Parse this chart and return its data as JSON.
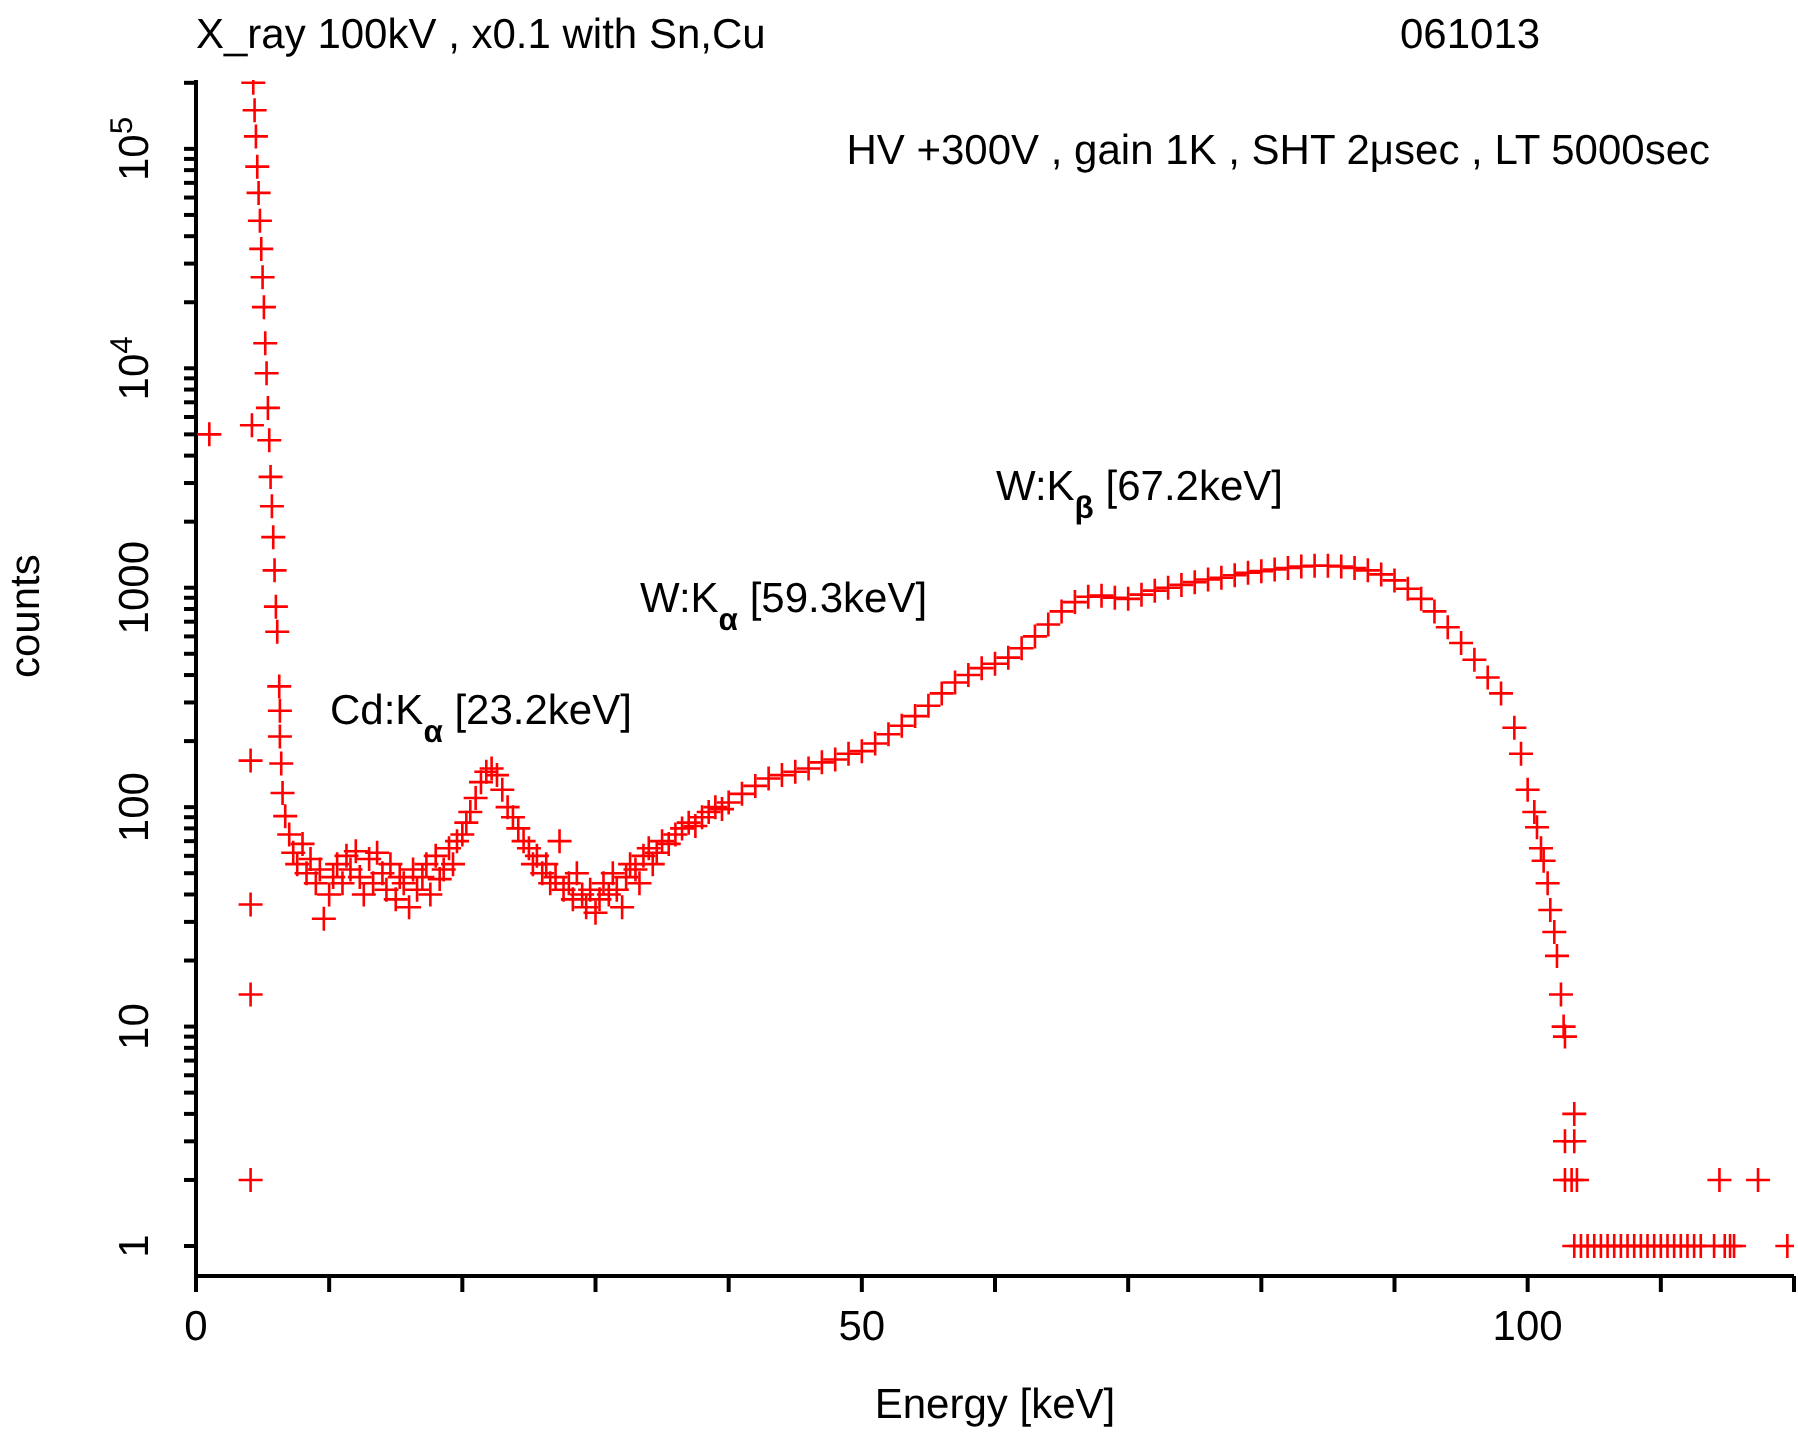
{
  "chart_data": {
    "type": "scatter",
    "title": "X_ray 100kV , x0.1 with Sn,Cu",
    "subtitle": "061013",
    "xlabel": "Energy [keV]",
    "ylabel": "counts",
    "annotations": [
      "HV +300V , gain 1K , SHT 2μsec , LT 5000sec",
      "Cd:K$_{α}$ [23.2keV]",
      "W:K$_{α}$ [59.3keV]",
      "W:K$_{β}$ [67.2keV]"
    ],
    "log": "y",
    "marker": "cross",
    "xlim": [
      0,
      120
    ],
    "ylim": [
      0.73,
      206000
    ],
    "xticks": [
      0,
      {
        "value": 10,
        "label": null
      },
      {
        "value": 20,
        "label": null
      },
      {
        "value": 30,
        "label": null
      },
      {
        "value": 40,
        "label": null
      },
      50,
      {
        "value": 60,
        "label": null
      },
      {
        "value": 70,
        "label": null
      },
      {
        "value": 80,
        "label": null
      },
      {
        "value": 90,
        "label": null
      },
      100,
      {
        "value": 110,
        "label": null
      },
      {
        "value": 120,
        "label": null
      }
    ],
    "yticks": [
      1,
      {
        "value": 2,
        "label": null
      },
      {
        "value": 3,
        "label": null
      },
      {
        "value": 4,
        "label": null
      },
      {
        "value": 5,
        "label": null
      },
      {
        "value": 6,
        "label": null
      },
      {
        "value": 7,
        "label": null
      },
      {
        "value": 8,
        "label": null
      },
      {
        "value": 9,
        "label": null
      },
      10,
      {
        "value": 20,
        "label": null
      },
      {
        "value": 30,
        "label": null
      },
      {
        "value": 40,
        "label": null
      },
      {
        "value": 50,
        "label": null
      },
      {
        "value": 60,
        "label": null
      },
      {
        "value": 70,
        "label": null
      },
      {
        "value": 80,
        "label": null
      },
      {
        "value": 90,
        "label": null
      },
      100,
      {
        "value": 200,
        "label": null
      },
      {
        "value": 300,
        "label": null
      },
      {
        "value": 400,
        "label": null
      },
      {
        "value": 500,
        "label": null
      },
      {
        "value": 600,
        "label": null
      },
      {
        "value": 700,
        "label": null
      },
      {
        "value": 800,
        "label": null
      },
      {
        "value": 900,
        "label": null
      },
      1000,
      {
        "value": 2000,
        "label": null
      },
      {
        "value": 3000,
        "label": null
      },
      {
        "value": 4000,
        "label": null
      },
      {
        "value": 5000,
        "label": null
      },
      {
        "value": 6000,
        "label": null
      },
      {
        "value": 7000,
        "label": null
      },
      {
        "value": 8000,
        "label": null
      },
      {
        "value": 9000,
        "label": null
      },
      {
        "value": 10000,
        "label": "10$^{4}$"
      },
      {
        "value": 20000,
        "label": null
      },
      {
        "value": 30000,
        "label": null
      },
      {
        "value": 40000,
        "label": null
      },
      {
        "value": 50000,
        "label": null
      },
      {
        "value": 60000,
        "label": null
      },
      {
        "value": 70000,
        "label": null
      },
      {
        "value": 80000,
        "label": null
      },
      {
        "value": 90000,
        "label": null
      },
      {
        "value": 100000,
        "label": "10$^{5}$"
      },
      {
        "value": 200000,
        "label": null
      }
    ],
    "series": [
      {
        "color": "#ff0000",
        "x": [
          1,
          4.1,
          4.1,
          4.1,
          4.1,
          4.2,
          4.3,
          4.4,
          4.5,
          4.6,
          4.7,
          4.8,
          4.9,
          5.0,
          5.1,
          5.2,
          5.3,
          5.4,
          5.5,
          5.6,
          5.7,
          5.8,
          5.9,
          6.0,
          6.1,
          6.25,
          6.3,
          6.3,
          6.4,
          6.5,
          6.7,
          7,
          7.3,
          7.6,
          8,
          8.3,
          8.6,
          9,
          9.3,
          9.6,
          10,
          10.3,
          10.6,
          11,
          11.3,
          11.6,
          12,
          12.3,
          12.6,
          13,
          13.3,
          13.6,
          14,
          14.3,
          14.6,
          15,
          15.3,
          15.6,
          16,
          16.3,
          16.6,
          17,
          17.3,
          17.6,
          18,
          18.3,
          18.6,
          19,
          19.3,
          19.6,
          20,
          20.3,
          20.6,
          21,
          21.4,
          21.8,
          22.2,
          22.6,
          23,
          23.4,
          23.8,
          24.2,
          24.6,
          25,
          25.3,
          25.6,
          26,
          26.3,
          26.6,
          27,
          27.3,
          27.6,
          28,
          28.3,
          28.6,
          29,
          29.3,
          29.6,
          30,
          30.3,
          30.6,
          31,
          31.3,
          31.6,
          32,
          32.3,
          32.6,
          33,
          33.3,
          33.6,
          34,
          34.3,
          34.6,
          35,
          35.5,
          36,
          36.5,
          37,
          37.5,
          38,
          38.5,
          39,
          39.5,
          40,
          41,
          42,
          43,
          44,
          45,
          46,
          47,
          48,
          49,
          50,
          51,
          52,
          53,
          54,
          55,
          56,
          57,
          58,
          59,
          60,
          61,
          62,
          63,
          64,
          65,
          66,
          67,
          68,
          69,
          70,
          71,
          72,
          73,
          74,
          75,
          76,
          77,
          78,
          79,
          80,
          81,
          82,
          83,
          84,
          85,
          86,
          87,
          88,
          89,
          90,
          91,
          92,
          93,
          94,
          95,
          96,
          97,
          98,
          99,
          99.5,
          100,
          100.5,
          100.7,
          101,
          101.2,
          101.5,
          101.7,
          102,
          102.2,
          102.5,
          102.7,
          102.8,
          102.8,
          102.8,
          103.3,
          103.5,
          103.5,
          103.7,
          103.5,
          104,
          104.5,
          105,
          105.5,
          106,
          106.5,
          107,
          107.5,
          108,
          108.5,
          109,
          109.5,
          110,
          110.5,
          111,
          111.5,
          112,
          112.5,
          113,
          114,
          114.4,
          114.8,
          115.2,
          115.5,
          117.3,
          119.5
        ],
        "values": [
          5000,
          163,
          36,
          14,
          2,
          5500,
          200000,
          150000,
          114000,
          83000,
          63000,
          47000,
          35000,
          26000,
          19000,
          13000,
          9500,
          6600,
          4700,
          3200,
          2350,
          1700,
          1200,
          820,
          630,
          355,
          275,
          210,
          158,
          116,
          91,
          75,
          62,
          55,
          68,
          50,
          58,
          45,
          52,
          31,
          40,
          48,
          55,
          45,
          60,
          52,
          63,
          48,
          40,
          58,
          45,
          62,
          50,
          42,
          55,
          38,
          48,
          45,
          35,
          52,
          42,
          48,
          55,
          40,
          60,
          47,
          52,
          65,
          55,
          70,
          75,
          85,
          95,
          110,
          130,
          145,
          150,
          140,
          120,
          100,
          90,
          80,
          70,
          65,
          55,
          60,
          50,
          55,
          45,
          48,
          70,
          42,
          45,
          38,
          50,
          40,
          35,
          42,
          33,
          38,
          45,
          40,
          50,
          42,
          35,
          48,
          55,
          52,
          45,
          60,
          65,
          55,
          62,
          70,
          68,
          75,
          80,
          85,
          82,
          90,
          95,
          100,
          98,
          105,
          115,
          125,
          135,
          140,
          145,
          150,
          160,
          165,
          175,
          180,
          195,
          215,
          235,
          260,
          290,
          330,
          370,
          400,
          430,
          450,
          480,
          530,
          600,
          680,
          780,
          860,
          910,
          920,
          900,
          890,
          930,
          970,
          1000,
          1030,
          1060,
          1090,
          1110,
          1140,
          1170,
          1190,
          1210,
          1230,
          1250,
          1260,
          1260,
          1250,
          1230,
          1200,
          1150,
          1080,
          990,
          890,
          780,
          660,
          560,
          470,
          390,
          330,
          230,
          175,
          120,
          95,
          81,
          65,
          57,
          45,
          34,
          27,
          21,
          14,
          10,
          9,
          3,
          2,
          2,
          4,
          3,
          2,
          1,
          1,
          1,
          1,
          1,
          1,
          1,
          1,
          1,
          1,
          1,
          1,
          1,
          1,
          1,
          1,
          1,
          1,
          1,
          1,
          1,
          2,
          1,
          1,
          1,
          2,
          1
        ]
      }
    ]
  }
}
